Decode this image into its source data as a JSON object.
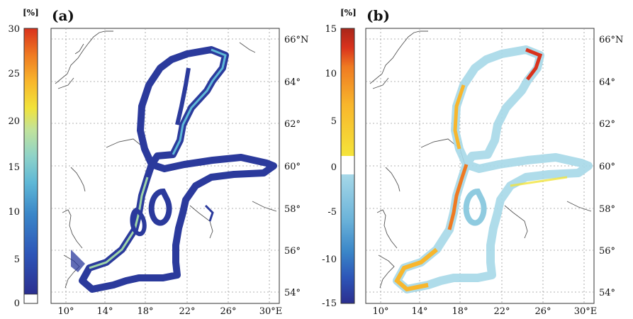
{
  "panels": [
    {
      "letter": "(a)",
      "unit": "[%]",
      "colorbar_ticks": [
        "30",
        "25",
        "20",
        "15",
        "10",
        "5",
        "0"
      ],
      "colorbar_range": [
        0,
        30
      ],
      "colors": [
        "#ffffff",
        "#2b2f8f",
        "#2d55b8",
        "#3a86c8",
        "#5fb8d6",
        "#8fd3c8",
        "#c2e39a",
        "#f1e33b",
        "#f8b62c",
        "#ef7a22",
        "#d9321c"
      ]
    },
    {
      "letter": "(b)",
      "unit": "[%]",
      "colorbar_ticks": [
        "15",
        "10",
        "5",
        "0",
        "-5",
        "-10",
        "-15"
      ],
      "colorbar_range": [
        -15,
        15
      ],
      "colors": [
        "#2b2f8f",
        "#2d55b8",
        "#3a86c8",
        "#6bb3d9",
        "#a6d8e8",
        "#ffffff",
        "#f5e43a",
        "#f8b62c",
        "#ef7a22",
        "#d9321c",
        "#a8261a"
      ]
    }
  ],
  "lon_labels": [
    "10°",
    "14°",
    "18°",
    "22°",
    "26°",
    "30°E"
  ],
  "lat_labels": [
    "66°N",
    "64°",
    "62°",
    "60°",
    "58°",
    "56°",
    "54°"
  ]
}
